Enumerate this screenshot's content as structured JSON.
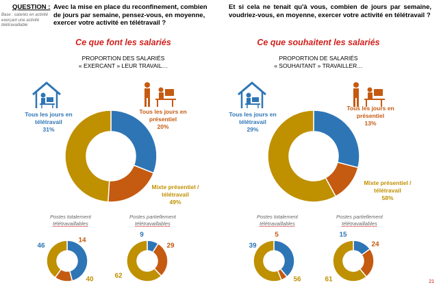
{
  "question": {
    "label": "QUESTION :",
    "text_left": "Avec la mise en place du reconfinement, combien de jours par semaine, pensez-vous, en moyenne, exercer votre activité en télétravail ?",
    "text_right": "Et si cela ne tenait qu'à vous, combien de jours par semaine, voudriez-vous, en moyenne, exercer votre activité en télétravail ?",
    "base": "Base : salariés en activité exerçant une activité télétravaillable"
  },
  "left": {
    "section_title": "Ce que font les salariés",
    "subtitle_line1": "PROPORTION DES SALARIÉS",
    "subtitle_line2": "« EXERCANT » LEUR TRAVAIL…",
    "lbl_tele": [
      "Tous les jours en",
      "télétravail",
      "31%"
    ],
    "lbl_pres": [
      "Tous les jours en",
      "présentiel",
      "20%"
    ],
    "lbl_mix": [
      "Mixte présentiel /",
      "télétravail",
      "49%"
    ],
    "small1_title": [
      "Postes totalement",
      "télétravaillables"
    ],
    "small2_title": [
      "Postes partiellement",
      "télétravaillables"
    ],
    "small1_vals": [
      "46",
      "14",
      "40"
    ],
    "small2_vals": [
      "9",
      "29",
      "62"
    ]
  },
  "right": {
    "section_title": "Ce que souhaitent les salariés",
    "subtitle_line1": "PROPORTION DE SALARIÉS",
    "subtitle_line2": "« SOUHAITANT » TRAVAILLER…",
    "lbl_tele": [
      "Tous les jours en",
      "télétravail",
      "29%"
    ],
    "lbl_pres": [
      "Tous les jours en",
      "présentiel",
      "13%"
    ],
    "lbl_mix": [
      "Mixte présentiel /",
      "télétravail",
      "58%"
    ],
    "small1_title": [
      "Postes totalement",
      "télétravaillables"
    ],
    "small2_title": [
      "Postes partiellement",
      "télétravaillables"
    ],
    "small1_vals": [
      "39",
      "5",
      "56"
    ],
    "small2_vals": [
      "15",
      "24",
      "61"
    ]
  },
  "page_number": "21",
  "colors": {
    "blue": "#2e75b6",
    "orange": "#c55a11",
    "gold": "#bf9000"
  },
  "icons": {
    "telework": "house-with-person-at-desk-icon",
    "office": "people-at-office-desk-icon"
  },
  "chart_data": [
    {
      "type": "pie",
      "variant": "donut",
      "title": "Ce que font les salariés",
      "categories": [
        "Tous les jours en télétravail",
        "Tous les jours en présentiel",
        "Mixte présentiel / télétravail"
      ],
      "values": [
        31,
        20,
        49
      ]
    },
    {
      "type": "pie",
      "variant": "donut",
      "title": "Postes totalement télétravaillables",
      "categories": [
        "Tous les jours en télétravail",
        "Tous les jours en présentiel",
        "Mixte présentiel / télétravail"
      ],
      "values": [
        46,
        14,
        40
      ]
    },
    {
      "type": "pie",
      "variant": "donut",
      "title": "Postes partiellement télétravaillables",
      "categories": [
        "Tous les jours en télétravail",
        "Tous les jours en présentiel",
        "Mixte présentiel / télétravail"
      ],
      "values": [
        9,
        29,
        62
      ]
    },
    {
      "type": "pie",
      "variant": "donut",
      "title": "Ce que souhaitent les salariés",
      "categories": [
        "Tous les jours en télétravail",
        "Tous les jours en présentiel",
        "Mixte présentiel / télétravail"
      ],
      "values": [
        29,
        13,
        58
      ]
    },
    {
      "type": "pie",
      "variant": "donut",
      "title": "Postes totalement télétravaillables",
      "categories": [
        "Tous les jours en télétravail",
        "Tous les jours en présentiel",
        "Mixte présentiel / télétravail"
      ],
      "values": [
        39,
        5,
        56
      ]
    },
    {
      "type": "pie",
      "variant": "donut",
      "title": "Postes partiellement télétravaillables",
      "categories": [
        "Tous les jours en télétravail",
        "Tous les jours en présentiel",
        "Mixte présentiel / télétravail"
      ],
      "values": [
        15,
        24,
        61
      ]
    }
  ]
}
